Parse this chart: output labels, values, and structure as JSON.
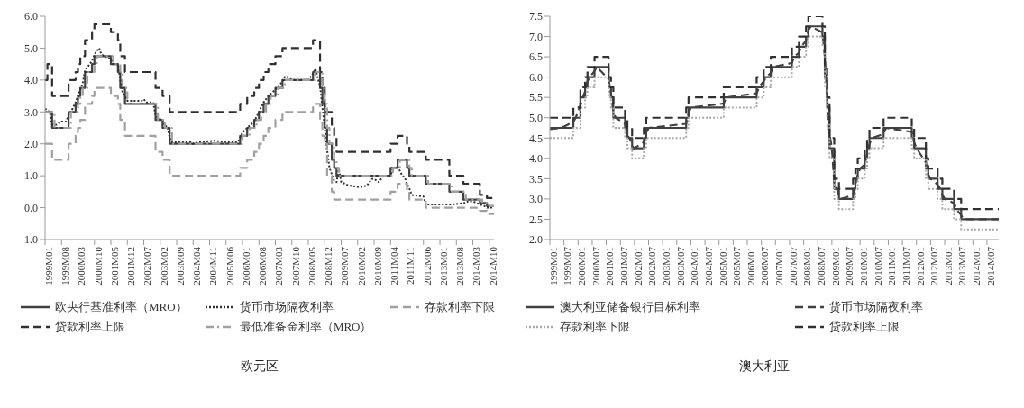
{
  "chart_data": [
    {
      "type": "step",
      "title": "欧元区",
      "xlim": [
        "1999-01",
        "2014-12"
      ],
      "xticks": [
        {
          "value": "1999-01",
          "label": "1999M01"
        },
        {
          "value": "1999-08",
          "label": "1999M08"
        },
        {
          "value": "2000-03",
          "label": "2000M03"
        },
        {
          "value": "2000-10",
          "label": "2000M10"
        },
        {
          "value": "2001-05",
          "label": "2001M05"
        },
        {
          "value": "2001-12",
          "label": "2001M12"
        },
        {
          "value": "2002-07",
          "label": "2002M07"
        },
        {
          "value": "2003-02",
          "label": "2003M02"
        },
        {
          "value": "2003-09",
          "label": "2003M09"
        },
        {
          "value": "2004-04",
          "label": "2004M04"
        },
        {
          "value": "2004-11",
          "label": "2004M11"
        },
        {
          "value": "2005-06",
          "label": "2005M06"
        },
        {
          "value": "2006-01",
          "label": "2006M01"
        },
        {
          "value": "2006-08",
          "label": "2006M08"
        },
        {
          "value": "2007-03",
          "label": "2007M03"
        },
        {
          "value": "2007-10",
          "label": "2007M10"
        },
        {
          "value": "2008-05",
          "label": "2008M05"
        },
        {
          "value": "2008-12",
          "label": "2008M12"
        },
        {
          "value": "2009-07",
          "label": "2009M07"
        },
        {
          "value": "2010-02",
          "label": "2010M02"
        },
        {
          "value": "2010-09",
          "label": "2010M09"
        },
        {
          "value": "2011-04",
          "label": "2011M04"
        },
        {
          "value": "2011-11",
          "label": "2011M11"
        },
        {
          "value": "2012-06",
          "label": "2012M06"
        },
        {
          "value": "2013-01",
          "label": "2013M01"
        },
        {
          "value": "2013-08",
          "label": "2013M08"
        },
        {
          "value": "2014-03",
          "label": "2014M03"
        },
        {
          "value": "2014-10",
          "label": "2014M10"
        }
      ],
      "ylim": [
        -1,
        6
      ],
      "yticks": [
        {
          "value": -1,
          "label": "-1.0"
        },
        {
          "value": 0,
          "label": "0.0"
        },
        {
          "value": 1,
          "label": "1.0"
        },
        {
          "value": 2,
          "label": "2.0"
        },
        {
          "value": 3,
          "label": "3.0"
        },
        {
          "value": 4,
          "label": "4.0"
        },
        {
          "value": 5,
          "label": "5.0"
        },
        {
          "value": 6,
          "label": "6.0"
        }
      ],
      "legend": "bottom",
      "marker": "none",
      "series": [
        {
          "name": "欧央行基准利率（MRO）",
          "color": "#404040",
          "line_style": "solid",
          "x": [
            "1999-01",
            "1999-04",
            "1999-11",
            "2000-02",
            "2000-03",
            "2000-04",
            "2000-06",
            "2000-09",
            "2000-10",
            "2001-05",
            "2001-08",
            "2001-09",
            "2001-11",
            "2002-12",
            "2003-03",
            "2003-06",
            "2005-12",
            "2006-03",
            "2006-06",
            "2006-08",
            "2006-10",
            "2006-12",
            "2007-03",
            "2007-06",
            "2008-07",
            "2008-10",
            "2008-11",
            "2008-12",
            "2009-01",
            "2009-03",
            "2009-04",
            "2009-05",
            "2011-04",
            "2011-07",
            "2011-11",
            "2011-12",
            "2012-07",
            "2013-05",
            "2013-11",
            "2014-06",
            "2014-09",
            "2014-12"
          ],
          "values": [
            3.0,
            2.5,
            3.0,
            3.25,
            3.5,
            3.75,
            4.25,
            4.5,
            4.75,
            4.5,
            4.25,
            3.75,
            3.25,
            2.75,
            2.5,
            2.0,
            2.25,
            2.5,
            2.75,
            3.0,
            3.25,
            3.5,
            3.75,
            4.0,
            4.25,
            3.75,
            3.25,
            2.5,
            2.0,
            1.5,
            1.25,
            1.0,
            1.25,
            1.5,
            1.25,
            1.0,
            0.75,
            0.5,
            0.25,
            0.15,
            0.05,
            0.05
          ]
        },
        {
          "name": "货币市场隔夜利率",
          "color": "#303030",
          "line_style": "dotted",
          "type": "line",
          "x": [
            "1999-01",
            "1999-03",
            "1999-04",
            "1999-06",
            "1999-08",
            "1999-10",
            "1999-11",
            "1999-12",
            "2000-02",
            "2000-03",
            "2000-04",
            "2000-05",
            "2000-06",
            "2000-08",
            "2000-09",
            "2000-10",
            "2000-12",
            "2001-01",
            "2001-05",
            "2001-06",
            "2001-08",
            "2001-09",
            "2001-10",
            "2001-11",
            "2001-12",
            "2002-06",
            "2002-07",
            "2002-08",
            "2002-11",
            "2002-12",
            "2003-01",
            "2003-03",
            "2003-04",
            "2003-05",
            "2003-06",
            "2003-07",
            "2004-03",
            "2004-04",
            "2004-06",
            "2005-01",
            "2005-06",
            "2005-11",
            "2005-12",
            "2006-01",
            "2006-03",
            "2006-06",
            "2006-08",
            "2006-10",
            "2006-12",
            "2007-03",
            "2007-06",
            "2007-07",
            "2007-08",
            "2007-10",
            "2008-05",
            "2008-07",
            "2008-08",
            "2008-10",
            "2008-11",
            "2008-12",
            "2009-01",
            "2009-02",
            "2009-03",
            "2009-04",
            "2009-05",
            "2009-06",
            "2009-07",
            "2009-10",
            "2010-02",
            "2010-04",
            "2010-06",
            "2010-08",
            "2010-09",
            "2010-11",
            "2011-01",
            "2011-04",
            "2011-05",
            "2011-07",
            "2011-09",
            "2011-10",
            "2011-11",
            "2011-12",
            "2012-01",
            "2012-06",
            "2012-07",
            "2013-06",
            "2013-12",
            "2014-01",
            "2014-03",
            "2014-06",
            "2014-08",
            "2014-09",
            "2014-12"
          ],
          "values": [
            3.1,
            3.0,
            2.6,
            2.6,
            2.7,
            2.7,
            2.9,
            3.0,
            3.3,
            3.5,
            3.7,
            3.9,
            4.3,
            4.5,
            4.6,
            4.8,
            5.0,
            4.8,
            4.65,
            4.5,
            4.5,
            4.0,
            3.6,
            3.5,
            3.35,
            3.35,
            3.4,
            3.3,
            3.3,
            2.9,
            2.8,
            2.75,
            2.55,
            2.55,
            2.2,
            2.05,
            2.05,
            2.0,
            2.05,
            2.1,
            2.05,
            2.05,
            2.2,
            2.35,
            2.5,
            2.7,
            3.0,
            3.3,
            3.5,
            3.7,
            3.95,
            4.1,
            4.1,
            4.0,
            4.0,
            4.2,
            4.35,
            3.8,
            3.15,
            2.5,
            1.8,
            1.25,
            1.05,
            0.85,
            0.8,
            1.2,
            0.8,
            0.7,
            0.65,
            0.65,
            0.7,
            0.9,
            0.9,
            0.8,
            1.0,
            1.0,
            1.2,
            1.3,
            1.0,
            0.95,
            0.75,
            0.6,
            0.4,
            0.35,
            0.1,
            0.1,
            0.15,
            0.2,
            0.2,
            0.1,
            0.05,
            0.0,
            0.0
          ]
        },
        {
          "name": "存款利率下限",
          "color": "#a0a0a0",
          "line_style": "dashed",
          "x": [
            "1999-01",
            "1999-04",
            "1999-11",
            "2000-02",
            "2000-03",
            "2000-04",
            "2000-06",
            "2000-09",
            "2000-10",
            "2001-05",
            "2001-08",
            "2001-09",
            "2001-11",
            "2002-12",
            "2003-03",
            "2003-06",
            "2005-12",
            "2006-03",
            "2006-06",
            "2006-08",
            "2006-10",
            "2006-12",
            "2007-03",
            "2007-06",
            "2008-07",
            "2008-10",
            "2008-11",
            "2008-12",
            "2009-01",
            "2009-03",
            "2009-04",
            "2011-04",
            "2011-07",
            "2011-11",
            "2011-12",
            "2012-07",
            "2014-06",
            "2014-09",
            "2014-12"
          ],
          "values": [
            2.0,
            1.5,
            2.0,
            2.25,
            2.5,
            2.75,
            3.25,
            3.5,
            3.75,
            3.5,
            3.25,
            2.75,
            2.25,
            1.75,
            1.5,
            1.0,
            1.25,
            1.5,
            1.75,
            2.0,
            2.25,
            2.5,
            2.75,
            3.0,
            3.25,
            2.75,
            2.25,
            2.0,
            1.0,
            0.5,
            0.25,
            0.5,
            0.75,
            0.5,
            0.25,
            0.0,
            -0.1,
            -0.2,
            -0.2
          ]
        },
        {
          "name": "贷款利率上限",
          "color": "#303030",
          "line_style": "dashed",
          "x": [
            "1999-01",
            "1999-02",
            "1999-04",
            "1999-11",
            "2000-02",
            "2000-03",
            "2000-04",
            "2000-06",
            "2000-09",
            "2000-10",
            "2001-05",
            "2001-08",
            "2001-09",
            "2001-11",
            "2002-12",
            "2003-03",
            "2003-06",
            "2005-12",
            "2006-03",
            "2006-06",
            "2006-08",
            "2006-10",
            "2006-12",
            "2007-03",
            "2007-06",
            "2008-07",
            "2008-10",
            "2008-11",
            "2008-12",
            "2009-03",
            "2009-04",
            "2009-05",
            "2011-04",
            "2011-07",
            "2011-11",
            "2011-12",
            "2012-07",
            "2013-05",
            "2013-11",
            "2014-06",
            "2014-09",
            "2014-12"
          ],
          "values": [
            4.0,
            4.5,
            3.5,
            4.0,
            4.25,
            4.5,
            4.75,
            5.25,
            5.5,
            5.75,
            5.5,
            5.25,
            4.75,
            4.25,
            3.75,
            3.5,
            3.0,
            3.25,
            3.5,
            3.75,
            4.0,
            4.25,
            4.5,
            4.75,
            5.0,
            5.25,
            4.25,
            3.75,
            3.0,
            2.5,
            2.25,
            1.75,
            2.0,
            2.25,
            2.0,
            1.75,
            1.5,
            1.0,
            0.75,
            0.4,
            0.3,
            0.3
          ]
        },
        {
          "name": "最低准备金利率（MRO）",
          "color": "#a0a0a0",
          "line_style": "dashdot",
          "x": [
            "1999-01",
            "1999-05",
            "1999-12",
            "2000-03",
            "2000-04",
            "2000-05",
            "2000-07",
            "2000-10",
            "2000-11",
            "2001-06",
            "2001-09",
            "2001-10",
            "2001-12",
            "2003-01",
            "2003-04",
            "2003-07",
            "2006-01",
            "2006-04",
            "2006-07",
            "2006-09",
            "2006-11",
            "2007-01",
            "2007-04",
            "2007-07",
            "2008-08",
            "2008-11",
            "2008-12",
            "2009-01",
            "2009-02",
            "2009-04",
            "2009-05",
            "2009-06",
            "2011-05",
            "2011-08",
            "2011-12",
            "2012-01",
            "2012-08",
            "2013-06",
            "2013-12",
            "2014-07",
            "2014-10",
            "2014-12"
          ],
          "values": [
            3.0,
            2.5,
            3.0,
            3.25,
            3.5,
            3.75,
            4.25,
            4.5,
            4.75,
            4.5,
            4.25,
            3.75,
            3.25,
            2.75,
            2.5,
            2.0,
            2.25,
            2.5,
            2.75,
            3.0,
            3.25,
            3.5,
            3.75,
            4.0,
            4.25,
            3.75,
            3.25,
            2.5,
            2.0,
            1.5,
            1.25,
            1.0,
            1.25,
            1.5,
            1.25,
            1.0,
            0.75,
            0.5,
            0.25,
            0.15,
            0.05,
            0.05
          ]
        }
      ]
    },
    {
      "type": "step",
      "title": "澳大利亚",
      "xlim": [
        "1999-01",
        "2014-12"
      ],
      "xticks": [
        {
          "value": "1999-01",
          "label": "1999M01"
        },
        {
          "value": "1999-07",
          "label": "1999M07"
        },
        {
          "value": "2000-01",
          "label": "2000M01"
        },
        {
          "value": "2000-07",
          "label": "2000M07"
        },
        {
          "value": "2001-01",
          "label": "2001M01"
        },
        {
          "value": "2001-07",
          "label": "2001M07"
        },
        {
          "value": "2002-01",
          "label": "2002M01"
        },
        {
          "value": "2002-07",
          "label": "2002M07"
        },
        {
          "value": "2003-01",
          "label": "2003M01"
        },
        {
          "value": "2003-07",
          "label": "2003M07"
        },
        {
          "value": "2004-01",
          "label": "2004M01"
        },
        {
          "value": "2004-07",
          "label": "2004M07"
        },
        {
          "value": "2005-01",
          "label": "2005M01"
        },
        {
          "value": "2005-07",
          "label": "2005M07"
        },
        {
          "value": "2006-01",
          "label": "2006M01"
        },
        {
          "value": "2006-07",
          "label": "2006M07"
        },
        {
          "value": "2007-01",
          "label": "2007M01"
        },
        {
          "value": "2007-07",
          "label": "2007M07"
        },
        {
          "value": "2008-01",
          "label": "2008M01"
        },
        {
          "value": "2008-07",
          "label": "2008M07"
        },
        {
          "value": "2009-01",
          "label": "2009M01"
        },
        {
          "value": "2009-07",
          "label": "2009M07"
        },
        {
          "value": "2010-01",
          "label": "2010M01"
        },
        {
          "value": "2010-07",
          "label": "2010M07"
        },
        {
          "value": "2011-01",
          "label": "2011M01"
        },
        {
          "value": "2011-07",
          "label": "2011M07"
        },
        {
          "value": "2012-01",
          "label": "2012M01"
        },
        {
          "value": "2012-07",
          "label": "2012M07"
        },
        {
          "value": "2013-01",
          "label": "2013M01"
        },
        {
          "value": "2013-07",
          "label": "2013M07"
        },
        {
          "value": "2014-01",
          "label": "2014M01"
        },
        {
          "value": "2014-07",
          "label": "2014M07"
        }
      ],
      "ylim": [
        2,
        7.5
      ],
      "yticks": [
        {
          "value": 2,
          "label": "2.0"
        },
        {
          "value": 2.5,
          "label": "2.5"
        },
        {
          "value": 3,
          "label": "3.0"
        },
        {
          "value": 3.5,
          "label": "3.5"
        },
        {
          "value": 4,
          "label": "4.0"
        },
        {
          "value": 4.5,
          "label": "4.5"
        },
        {
          "value": 5,
          "label": "5.0"
        },
        {
          "value": 5.5,
          "label": "5.5"
        },
        {
          "value": 6,
          "label": "6.0"
        },
        {
          "value": 6.5,
          "label": "6.5"
        },
        {
          "value": 7,
          "label": "7.0"
        },
        {
          "value": 7.5,
          "label": "7.5"
        }
      ],
      "legend": "bottom",
      "marker": "none",
      "series": [
        {
          "name": "澳大利亚储备银行目标利率",
          "color": "#404040",
          "line_style": "solid",
          "x": [
            "1999-01",
            "1999-11",
            "2000-02",
            "2000-04",
            "2000-05",
            "2000-08",
            "2001-02",
            "2001-03",
            "2001-04",
            "2001-09",
            "2001-10",
            "2001-12",
            "2002-05",
            "2002-06",
            "2003-11",
            "2003-12",
            "2005-03",
            "2006-05",
            "2006-08",
            "2006-11",
            "2007-08",
            "2007-11",
            "2008-02",
            "2008-03",
            "2008-09",
            "2008-10",
            "2008-11",
            "2008-12",
            "2009-02",
            "2009-04",
            "2009-10",
            "2009-11",
            "2009-12",
            "2010-03",
            "2010-04",
            "2010-05",
            "2010-11",
            "2011-11",
            "2011-12",
            "2012-05",
            "2012-06",
            "2012-10",
            "2012-12",
            "2013-05",
            "2013-08",
            "2014-12"
          ],
          "values": [
            4.75,
            5.0,
            5.5,
            5.75,
            6.0,
            6.25,
            5.75,
            5.5,
            5.0,
            4.75,
            4.5,
            4.25,
            4.5,
            4.75,
            5.0,
            5.25,
            5.5,
            5.75,
            6.0,
            6.25,
            6.5,
            6.75,
            7.0,
            7.25,
            7.0,
            6.0,
            5.25,
            4.25,
            3.25,
            3.0,
            3.25,
            3.5,
            3.75,
            4.0,
            4.25,
            4.5,
            4.75,
            4.5,
            4.25,
            3.75,
            3.5,
            3.25,
            3.0,
            2.75,
            2.5,
            2.5
          ]
        },
        {
          "name": "货币市场隔夜利率",
          "color": "#404040",
          "line_style": "dashed",
          "type": "line",
          "x": [
            "1999-01",
            "1999-06",
            "1999-11",
            "1999-12",
            "2000-02",
            "2000-03",
            "2000-04",
            "2000-05",
            "2000-06",
            "2000-08",
            "2000-09",
            "2001-02",
            "2001-03",
            "2001-04",
            "2001-05",
            "2001-09",
            "2001-10",
            "2001-11",
            "2001-12",
            "2002-01",
            "2002-05",
            "2002-06",
            "2002-07",
            "2003-11",
            "2003-12",
            "2004-01",
            "2005-03",
            "2005-04",
            "2006-05",
            "2006-06",
            "2006-08",
            "2006-09",
            "2006-11",
            "2006-12",
            "2007-08",
            "2007-09",
            "2007-11",
            "2007-12",
            "2008-02",
            "2008-03",
            "2008-04",
            "2008-09",
            "2008-10",
            "2008-11",
            "2008-12",
            "2009-01",
            "2009-02",
            "2009-03",
            "2009-04",
            "2009-05",
            "2009-10",
            "2009-11",
            "2009-12",
            "2010-01",
            "2010-03",
            "2010-04",
            "2010-05",
            "2010-06",
            "2010-11",
            "2010-12",
            "2011-11",
            "2011-12",
            "2012-01",
            "2012-05",
            "2012-06",
            "2012-07",
            "2012-10",
            "2012-11",
            "2012-12",
            "2013-01",
            "2013-05",
            "2013-06",
            "2013-08",
            "2013-09",
            "2014-12"
          ],
          "values": [
            4.72,
            4.75,
            4.9,
            5.0,
            5.3,
            5.5,
            5.65,
            5.9,
            6.0,
            6.15,
            6.25,
            5.95,
            5.6,
            5.15,
            5.0,
            4.85,
            4.55,
            4.5,
            4.3,
            4.25,
            4.4,
            4.6,
            4.75,
            4.85,
            5.1,
            5.25,
            5.35,
            5.5,
            5.6,
            5.75,
            5.9,
            6.0,
            6.1,
            6.25,
            6.35,
            6.5,
            6.6,
            6.75,
            6.9,
            7.15,
            7.25,
            7.1,
            6.5,
            5.5,
            4.6,
            4.25,
            3.4,
            3.25,
            3.1,
            3.0,
            3.1,
            3.35,
            3.6,
            3.75,
            3.85,
            4.1,
            4.35,
            4.5,
            4.6,
            4.75,
            4.65,
            4.4,
            4.25,
            3.9,
            3.6,
            3.5,
            3.35,
            3.25,
            3.1,
            3.0,
            2.9,
            2.75,
            2.6,
            2.5,
            2.5
          ]
        },
        {
          "name": "存款利率下限",
          "color": "#a8a8a8",
          "line_style": "dotted",
          "x": [
            "1999-01",
            "1999-11",
            "2000-02",
            "2000-04",
            "2000-05",
            "2000-08",
            "2001-02",
            "2001-03",
            "2001-04",
            "2001-09",
            "2001-10",
            "2001-12",
            "2002-05",
            "2002-06",
            "2003-11",
            "2003-12",
            "2005-03",
            "2006-05",
            "2006-08",
            "2006-11",
            "2007-08",
            "2007-11",
            "2008-02",
            "2008-03",
            "2008-09",
            "2008-10",
            "2008-11",
            "2008-12",
            "2009-02",
            "2009-04",
            "2009-10",
            "2009-11",
            "2009-12",
            "2010-03",
            "2010-04",
            "2010-05",
            "2010-11",
            "2011-11",
            "2011-12",
            "2012-05",
            "2012-06",
            "2012-10",
            "2012-12",
            "2013-05",
            "2013-08",
            "2014-12"
          ],
          "values": [
            4.5,
            4.75,
            5.25,
            5.5,
            5.75,
            6.0,
            5.5,
            5.25,
            4.75,
            4.5,
            4.25,
            4.0,
            4.25,
            4.5,
            4.75,
            5.0,
            5.25,
            5.5,
            5.75,
            6.0,
            6.25,
            6.5,
            6.75,
            7.0,
            6.75,
            5.75,
            5.0,
            4.0,
            3.0,
            2.75,
            3.0,
            3.25,
            3.5,
            3.75,
            4.0,
            4.25,
            4.5,
            4.25,
            4.0,
            3.5,
            3.25,
            3.0,
            2.75,
            2.5,
            2.25,
            2.25
          ]
        },
        {
          "name": "贷款利率上限",
          "color": "#303030",
          "line_style": "dashed",
          "x": [
            "1999-01",
            "1999-11",
            "2000-02",
            "2000-04",
            "2000-05",
            "2000-08",
            "2001-02",
            "2001-03",
            "2001-04",
            "2001-09",
            "2001-10",
            "2001-12",
            "2002-05",
            "2002-06",
            "2003-11",
            "2003-12",
            "2005-03",
            "2006-05",
            "2006-08",
            "2006-11",
            "2007-08",
            "2007-11",
            "2008-02",
            "2008-03",
            "2008-09",
            "2008-10",
            "2008-11",
            "2008-12",
            "2009-02",
            "2009-04",
            "2009-10",
            "2009-11",
            "2009-12",
            "2010-03",
            "2010-04",
            "2010-05",
            "2010-11",
            "2011-11",
            "2011-12",
            "2012-05",
            "2012-06",
            "2012-10",
            "2012-12",
            "2013-05",
            "2013-08",
            "2014-12"
          ],
          "values": [
            5.0,
            5.25,
            5.75,
            6.0,
            6.25,
            6.5,
            6.0,
            5.75,
            5.25,
            5.0,
            4.75,
            4.5,
            4.75,
            5.0,
            5.25,
            5.5,
            5.75,
            6.0,
            6.25,
            6.5,
            6.75,
            7.0,
            7.25,
            7.5,
            7.25,
            6.25,
            5.5,
            4.5,
            3.5,
            3.25,
            3.5,
            3.75,
            4.0,
            4.25,
            4.5,
            4.75,
            5.0,
            4.75,
            4.5,
            4.0,
            3.75,
            3.5,
            3.25,
            3.0,
            2.75,
            2.75
          ]
        }
      ]
    }
  ]
}
